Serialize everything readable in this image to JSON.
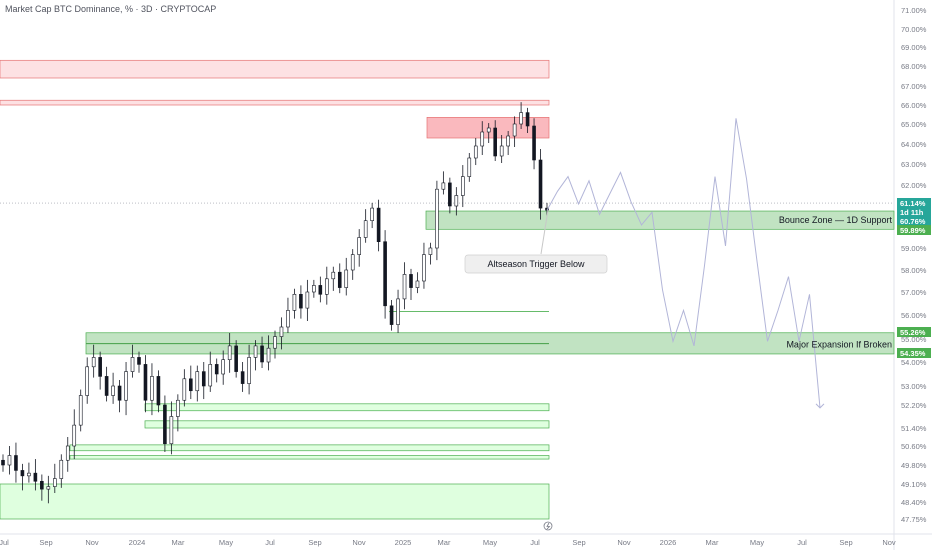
{
  "chart_data": {
    "type": "candlestick",
    "title": "Market Cap BTC Dominance, % · 3D · CRYPTOCAP",
    "y_axis_position": "right",
    "y_ticks": [
      "47.75%",
      "48.40%",
      "49.10%",
      "49.80%",
      "50.60%",
      "51.40%",
      "52.20%",
      "53.00%",
      "54.00%",
      "55.00%",
      "56.00%",
      "57.00%",
      "58.00%",
      "59.00%",
      "60.00%",
      "61.00%",
      "62.00%",
      "63.00%",
      "64.00%",
      "65.00%",
      "66.00%",
      "67.00%",
      "68.00%",
      "69.00%",
      "70.00%",
      "71.00%"
    ],
    "x_ticks": [
      "Jul",
      "Sep",
      "Nov",
      "2024",
      "Mar",
      "May",
      "Jul",
      "Sep",
      "Nov",
      "2025",
      "Mar",
      "May",
      "Jul",
      "Sep",
      "Nov",
      "2026",
      "Mar",
      "May",
      "Jul",
      "Sep",
      "Nov"
    ],
    "price_badges": [
      {
        "label": "61.14%",
        "value": 61.14,
        "color": "#26a69a"
      },
      {
        "label": "1d 11h",
        "value": 60.95,
        "color": "#26a69a"
      },
      {
        "label": "60.76%",
        "value": 60.76,
        "color": "#26a69a"
      },
      {
        "label": "59.89%",
        "value": 59.89,
        "color": "#4caf50"
      },
      {
        "label": "55.26%",
        "value": 55.26,
        "color": "#4caf50"
      },
      {
        "label": "54.35%",
        "value": 54.35,
        "color": "#4caf50"
      }
    ],
    "zones": [
      {
        "kind": "resistance",
        "low": 67.4,
        "high": 68.3
      },
      {
        "kind": "resistance",
        "low": 66.0,
        "high": 66.25
      },
      {
        "kind": "resistance",
        "low": 64.3,
        "high": 65.35
      },
      {
        "kind": "support",
        "low": 59.89,
        "high": 60.76,
        "label": "Bounce Zone — 1D Support"
      },
      {
        "kind": "support",
        "low": 54.35,
        "high": 55.26,
        "label": "Major Expansion If Broken"
      },
      {
        "kind": "support",
        "low": 52.0,
        "high": 52.25
      },
      {
        "kind": "support",
        "low": 51.4,
        "high": 51.65
      },
      {
        "kind": "support",
        "low": 50.4,
        "high": 50.65
      },
      {
        "kind": "support",
        "low": 50.05,
        "high": 50.2
      },
      {
        "kind": "support",
        "low": 47.75,
        "high": 49.1
      }
    ],
    "annotations": [
      {
        "text": "Altseason Trigger Below"
      },
      {
        "text": "Bounce Zone — 1D Support"
      },
      {
        "text": "Major Expansion If Broken"
      }
    ],
    "series_close": [
      49.8,
      50.2,
      49.6,
      49.4,
      49.5,
      49.2,
      48.9,
      49.0,
      49.3,
      50.0,
      50.6,
      51.5,
      52.6,
      53.8,
      54.2,
      53.4,
      52.6,
      53.0,
      52.4,
      53.6,
      54.2,
      53.9,
      52.4,
      53.4,
      52.2,
      50.7,
      51.8,
      52.4,
      53.3,
      52.8,
      53.6,
      53.0,
      53.9,
      53.5,
      54.1,
      54.7,
      53.6,
      53.1,
      54.2,
      54.7,
      54.0,
      54.6,
      55.1,
      55.5,
      56.2,
      56.9,
      56.3,
      57.0,
      57.3,
      56.9,
      57.6,
      57.9,
      57.2,
      58.0,
      58.7,
      59.5,
      60.3,
      60.9,
      59.3,
      56.4,
      55.6,
      56.7,
      57.8,
      57.2,
      57.5,
      58.7,
      59.0,
      61.8,
      62.1,
      61.0,
      61.5,
      62.4,
      63.3,
      63.9,
      64.6,
      64.8,
      63.4,
      63.9,
      64.4,
      65.0,
      65.6,
      64.9,
      63.2,
      60.9,
      60.8
    ],
    "projection": [
      60.8,
      61.7,
      62.4,
      61.1,
      62.2,
      60.6,
      61.6,
      62.6,
      61.2,
      60.1,
      60.7,
      57.1,
      54.9,
      56.2,
      54.7,
      58.2,
      62.4,
      59.1,
      65.3,
      62.3,
      58.4,
      54.9,
      56.2,
      57.7,
      54.9,
      56.9,
      52.1
    ]
  }
}
